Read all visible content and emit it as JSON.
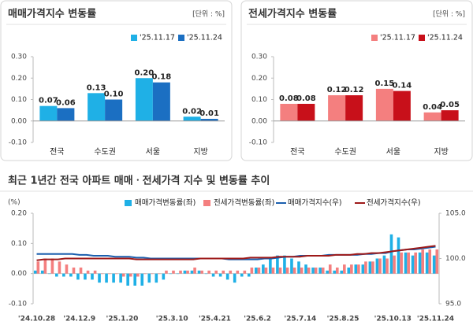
{
  "chart_data": [
    {
      "type": "bar",
      "title": "매매가격지수 변동률",
      "unit": "[단위 : %]",
      "categories": [
        "전국",
        "수도권",
        "서울",
        "지방"
      ],
      "series": [
        {
          "name": "'25.11.17",
          "color": "#1fb0e6",
          "values": [
            0.07,
            0.13,
            0.2,
            0.02
          ],
          "value_labels": [
            "0.07",
            "0.13",
            "0.20",
            "0.02"
          ]
        },
        {
          "name": "'25.11.24",
          "color": "#1b6fc2",
          "values": [
            0.06,
            0.1,
            0.18,
            0.01
          ],
          "value_labels": [
            "0.06",
            "0.10",
            "0.18",
            "0.01"
          ]
        }
      ],
      "ylim": [
        -0.1,
        0.3
      ],
      "yticks": [
        {
          "value": -0.1,
          "label": "-0.10"
        },
        {
          "value": 0,
          "label": "0.00"
        },
        {
          "value": 0.1,
          "label": "0.10"
        },
        {
          "value": 0.2,
          "label": "0.20"
        },
        {
          "value": 0.3,
          "label": "0.30"
        }
      ]
    },
    {
      "type": "bar",
      "title": "전세가격지수 변동률",
      "unit": "[단위 : %]",
      "categories": [
        "전국",
        "수도권",
        "서울",
        "지방"
      ],
      "series": [
        {
          "name": "'25.11.17",
          "color": "#f47f7f",
          "values": [
            0.08,
            0.12,
            0.15,
            0.04
          ],
          "value_labels": [
            "0.08",
            "0.12",
            "0.15",
            "0.04"
          ]
        },
        {
          "name": "'25.11.24",
          "color": "#c8101a",
          "values": [
            0.08,
            0.12,
            0.14,
            0.05
          ],
          "value_labels": [
            "0.08",
            "0.12",
            "0.14",
            "0.05"
          ]
        }
      ],
      "ylim": [
        -0.1,
        0.3
      ],
      "yticks": [
        {
          "value": -0.1,
          "label": "-0.10"
        },
        {
          "value": 0,
          "label": "0.00"
        },
        {
          "value": 0.1,
          "label": "0.10"
        },
        {
          "value": 0.2,
          "label": "0.20"
        },
        {
          "value": 0.3,
          "label": "0.30"
        }
      ]
    },
    {
      "type": "combo",
      "title": "최근 1년간 전국 아파트 매매ㆍ전세가격 지수 및 변동률 추이",
      "ylabel": "(%)",
      "categories": [
        "'24.10.28",
        null,
        null,
        null,
        null,
        null,
        "'24.12.9",
        null,
        null,
        null,
        null,
        null,
        "'25.1.20",
        null,
        null,
        null,
        null,
        null,
        null,
        "'25.3.10",
        null,
        null,
        null,
        null,
        null,
        "'25.4.21",
        null,
        null,
        null,
        null,
        null,
        "'25.6.2",
        null,
        null,
        null,
        null,
        null,
        "'25.7.14",
        null,
        null,
        null,
        null,
        null,
        "'25.8.25",
        null,
        null,
        null,
        null,
        null,
        null,
        "'25.10.13",
        null,
        null,
        null,
        null,
        null,
        "'25.11.24"
      ],
      "series": [
        {
          "name": "매매가격변동률(좌)",
          "type": "bar",
          "color": "#1fb0e6",
          "values": [
            0.01,
            0.01,
            0.0,
            -0.01,
            -0.01,
            -0.01,
            -0.02,
            -0.02,
            -0.02,
            -0.03,
            -0.03,
            -0.03,
            -0.03,
            -0.04,
            -0.04,
            -0.04,
            -0.03,
            -0.03,
            -0.02,
            0.0,
            0.0,
            0.01,
            0.01,
            0.01,
            0.0,
            -0.01,
            -0.01,
            -0.02,
            -0.03,
            -0.01,
            -0.01,
            0.02,
            0.03,
            0.05,
            0.06,
            0.06,
            0.05,
            0.04,
            0.03,
            0.02,
            0.02,
            0.01,
            0.01,
            0.01,
            0.02,
            0.03,
            0.03,
            0.04,
            0.05,
            0.06,
            0.13,
            0.12,
            0.07,
            0.06,
            0.07,
            0.07,
            0.06
          ]
        },
        {
          "name": "전세가격변동률(좌)",
          "type": "bar",
          "color": "#f47f7f",
          "values": [
            0.04,
            0.05,
            0.05,
            0.04,
            0.03,
            0.02,
            0.02,
            0.01,
            0.01,
            0.0,
            0.0,
            0.0,
            -0.01,
            -0.01,
            -0.01,
            0.0,
            0.0,
            0.0,
            0.01,
            0.01,
            0.01,
            0.01,
            0.02,
            0.01,
            0.01,
            0.01,
            0.01,
            0.01,
            0.01,
            0.01,
            0.02,
            0.02,
            0.02,
            0.02,
            0.02,
            0.02,
            0.02,
            0.02,
            0.02,
            0.02,
            0.02,
            0.03,
            0.02,
            0.03,
            0.03,
            0.03,
            0.04,
            0.04,
            0.05,
            0.05,
            0.06,
            0.07,
            0.07,
            0.07,
            0.08,
            0.08,
            0.08
          ]
        },
        {
          "name": "매매가격지수(우)",
          "type": "line",
          "axis": "y2",
          "color": "#1b5fae",
          "values": [
            100.5,
            100.5,
            100.5,
            100.5,
            100.5,
            100.5,
            100.4,
            100.4,
            100.3,
            100.3,
            100.3,
            100.2,
            100.2,
            100.2,
            100.1,
            100.1,
            100.0,
            100.0,
            100.0,
            100.0,
            100.0,
            100.0,
            100.0,
            100.0,
            100.0,
            100.0,
            100.0,
            99.9,
            99.9,
            99.9,
            99.9,
            99.9,
            100.0,
            100.0,
            100.1,
            100.2,
            100.2,
            100.3,
            100.3,
            100.3,
            100.3,
            100.4,
            100.4,
            100.4,
            100.4,
            100.4,
            100.5,
            100.5,
            100.6,
            100.6,
            100.8,
            100.9,
            101.0,
            101.0,
            101.1,
            101.2,
            101.3
          ]
        },
        {
          "name": "전세가격지수(우)",
          "type": "line",
          "axis": "y2",
          "color": "#9e1a1a",
          "values": [
            99.8,
            99.9,
            99.9,
            99.9,
            100.0,
            100.0,
            100.0,
            100.0,
            100.0,
            100.0,
            100.0,
            100.0,
            100.0,
            100.0,
            99.9,
            99.9,
            99.9,
            99.9,
            99.9,
            99.9,
            99.9,
            99.9,
            99.9,
            100.0,
            100.0,
            100.0,
            100.0,
            100.0,
            100.0,
            100.0,
            100.1,
            100.1,
            100.1,
            100.1,
            100.2,
            100.2,
            100.2,
            100.2,
            100.3,
            100.3,
            100.3,
            100.3,
            100.4,
            100.4,
            100.4,
            100.5,
            100.5,
            100.6,
            100.6,
            100.7,
            100.8,
            100.9,
            101.0,
            101.1,
            101.2,
            101.3,
            101.4
          ]
        }
      ],
      "ylim": [
        -0.1,
        0.2
      ],
      "yticks": [
        {
          "value": -0.1,
          "label": "-0.10"
        },
        {
          "value": 0,
          "label": "0.00"
        },
        {
          "value": 0.1,
          "label": "0.10"
        },
        {
          "value": 0.2,
          "label": "0.20"
        }
      ],
      "y2lim": [
        95,
        105
      ],
      "y2ticks": [
        {
          "value": 95,
          "label": "95.0"
        },
        {
          "value": 100,
          "label": "100.0"
        },
        {
          "value": 105,
          "label": "105.0"
        }
      ]
    }
  ]
}
